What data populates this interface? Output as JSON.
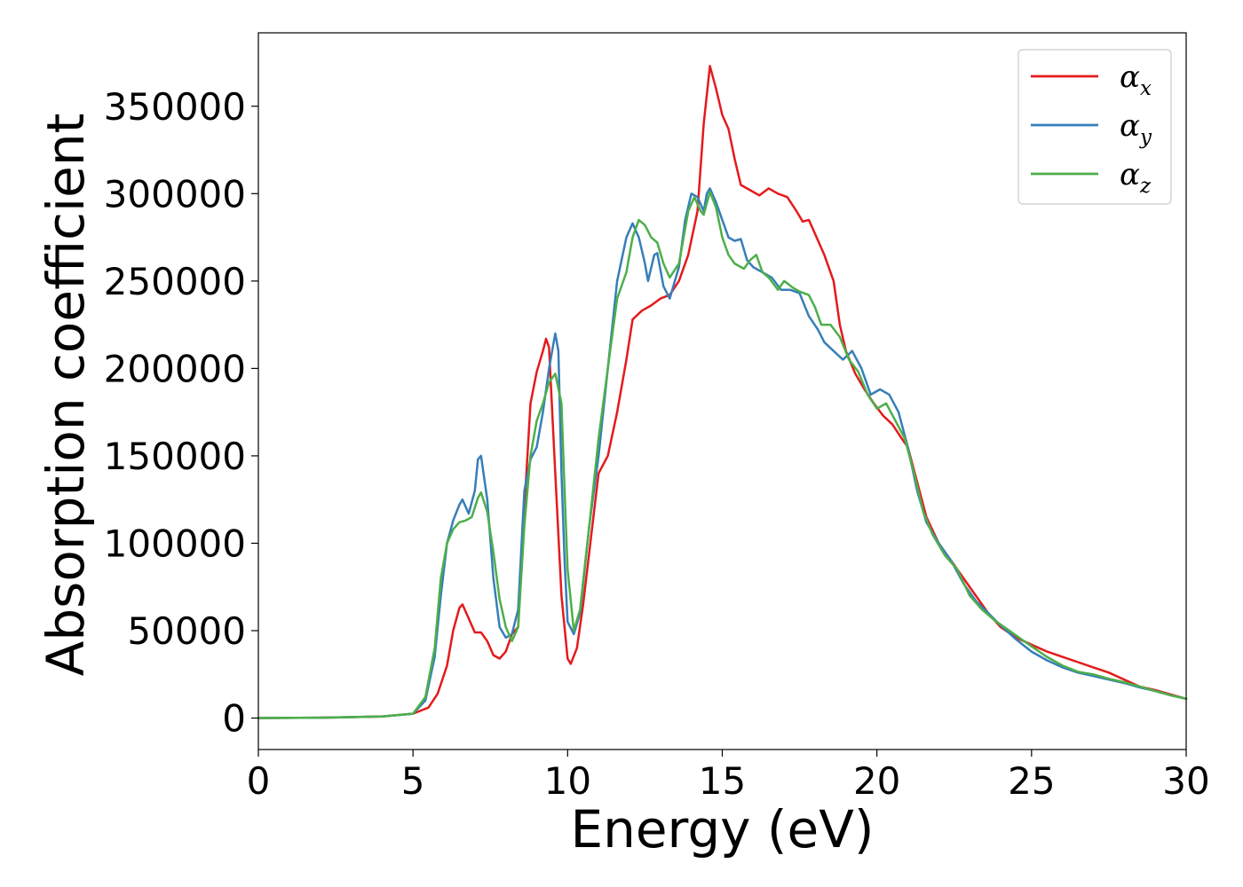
{
  "chart_data": {
    "type": "line",
    "title": "",
    "xlabel": "Energy (eV)",
    "ylabel": "Absorption coefficient",
    "xlim": [
      0,
      30
    ],
    "ylim": [
      -18000,
      392000
    ],
    "xticks": [
      0,
      5,
      10,
      15,
      20,
      25,
      30
    ],
    "xtick_labels": [
      "0",
      "5",
      "10",
      "15",
      "20",
      "25",
      "30"
    ],
    "yticks": [
      0,
      50000,
      100000,
      150000,
      200000,
      250000,
      300000,
      350000
    ],
    "ytick_labels": [
      "0",
      "50000",
      "100000",
      "150000",
      "200000",
      "250000",
      "300000",
      "350000"
    ],
    "grid": false,
    "legend_position": "top-right",
    "series": [
      {
        "name": "α",
        "subscript": "x",
        "color": "#e41a1c",
        "points": [
          [
            0,
            0
          ],
          [
            2,
            200
          ],
          [
            4,
            900
          ],
          [
            5,
            2500
          ],
          [
            5.5,
            6000
          ],
          [
            5.8,
            14000
          ],
          [
            6.1,
            30000
          ],
          [
            6.3,
            50000
          ],
          [
            6.5,
            63000
          ],
          [
            6.6,
            65000
          ],
          [
            6.8,
            57000
          ],
          [
            7.0,
            49000
          ],
          [
            7.2,
            49000
          ],
          [
            7.4,
            44000
          ],
          [
            7.6,
            36000
          ],
          [
            7.8,
            34000
          ],
          [
            8.0,
            38000
          ],
          [
            8.2,
            48000
          ],
          [
            8.4,
            52000
          ],
          [
            8.6,
            120000
          ],
          [
            8.8,
            180000
          ],
          [
            9.0,
            198000
          ],
          [
            9.2,
            210000
          ],
          [
            9.3,
            217000
          ],
          [
            9.4,
            212000
          ],
          [
            9.6,
            140000
          ],
          [
            9.8,
            70000
          ],
          [
            10.0,
            34000
          ],
          [
            10.1,
            31000
          ],
          [
            10.3,
            40000
          ],
          [
            10.5,
            65000
          ],
          [
            10.8,
            110000
          ],
          [
            11.0,
            140000
          ],
          [
            11.3,
            150000
          ],
          [
            11.6,
            175000
          ],
          [
            11.9,
            205000
          ],
          [
            12.1,
            228000
          ],
          [
            12.4,
            233000
          ],
          [
            12.7,
            236000
          ],
          [
            13.0,
            240000
          ],
          [
            13.3,
            242000
          ],
          [
            13.6,
            250000
          ],
          [
            13.9,
            265000
          ],
          [
            14.2,
            290000
          ],
          [
            14.4,
            340000
          ],
          [
            14.6,
            373000
          ],
          [
            14.8,
            360000
          ],
          [
            15.0,
            345000
          ],
          [
            15.2,
            337000
          ],
          [
            15.4,
            320000
          ],
          [
            15.6,
            305000
          ],
          [
            15.9,
            302000
          ],
          [
            16.2,
            299000
          ],
          [
            16.5,
            303000
          ],
          [
            16.8,
            300000
          ],
          [
            17.1,
            298000
          ],
          [
            17.4,
            290000
          ],
          [
            17.6,
            284000
          ],
          [
            17.8,
            285000
          ],
          [
            18.0,
            277000
          ],
          [
            18.3,
            265000
          ],
          [
            18.6,
            250000
          ],
          [
            18.8,
            225000
          ],
          [
            19.0,
            210000
          ],
          [
            19.3,
            197000
          ],
          [
            19.6,
            188000
          ],
          [
            19.9,
            180000
          ],
          [
            20.2,
            173000
          ],
          [
            20.5,
            168000
          ],
          [
            20.8,
            160000
          ],
          [
            21.0,
            155000
          ],
          [
            21.3,
            135000
          ],
          [
            21.6,
            115000
          ],
          [
            22.0,
            100000
          ],
          [
            22.4,
            90000
          ],
          [
            22.8,
            80000
          ],
          [
            23.2,
            70000
          ],
          [
            23.6,
            60000
          ],
          [
            24.0,
            52000
          ],
          [
            24.5,
            46000
          ],
          [
            25.0,
            42000
          ],
          [
            25.5,
            38000
          ],
          [
            26.0,
            35000
          ],
          [
            26.5,
            32000
          ],
          [
            27.0,
            29000
          ],
          [
            27.5,
            26000
          ],
          [
            28.0,
            22000
          ],
          [
            28.5,
            18000
          ],
          [
            29.0,
            16000
          ],
          [
            29.5,
            13500
          ],
          [
            30.0,
            11000
          ]
        ]
      },
      {
        "name": "α",
        "subscript": "y",
        "color": "#377eb8",
        "points": [
          [
            0,
            0
          ],
          [
            2,
            200
          ],
          [
            4,
            900
          ],
          [
            5,
            2500
          ],
          [
            5.4,
            10000
          ],
          [
            5.7,
            35000
          ],
          [
            5.9,
            70000
          ],
          [
            6.1,
            100000
          ],
          [
            6.3,
            113000
          ],
          [
            6.5,
            122000
          ],
          [
            6.6,
            125000
          ],
          [
            6.8,
            117000
          ],
          [
            7.0,
            130000
          ],
          [
            7.1,
            148000
          ],
          [
            7.2,
            150000
          ],
          [
            7.4,
            125000
          ],
          [
            7.6,
            80000
          ],
          [
            7.8,
            52000
          ],
          [
            8.0,
            46000
          ],
          [
            8.2,
            48000
          ],
          [
            8.4,
            62000
          ],
          [
            8.6,
            130000
          ],
          [
            8.8,
            148000
          ],
          [
            9.0,
            155000
          ],
          [
            9.2,
            175000
          ],
          [
            9.4,
            200000
          ],
          [
            9.6,
            220000
          ],
          [
            9.7,
            210000
          ],
          [
            9.8,
            140000
          ],
          [
            9.9,
            90000
          ],
          [
            10.0,
            55000
          ],
          [
            10.2,
            48000
          ],
          [
            10.4,
            60000
          ],
          [
            10.7,
            110000
          ],
          [
            11.0,
            150000
          ],
          [
            11.3,
            200000
          ],
          [
            11.6,
            250000
          ],
          [
            11.9,
            275000
          ],
          [
            12.1,
            283000
          ],
          [
            12.3,
            275000
          ],
          [
            12.5,
            260000
          ],
          [
            12.6,
            250000
          ],
          [
            12.8,
            265000
          ],
          [
            12.9,
            266000
          ],
          [
            13.1,
            247000
          ],
          [
            13.3,
            240000
          ],
          [
            13.6,
            258000
          ],
          [
            13.8,
            285000
          ],
          [
            14.0,
            300000
          ],
          [
            14.2,
            298000
          ],
          [
            14.4,
            290000
          ],
          [
            14.5,
            300000
          ],
          [
            14.6,
            303000
          ],
          [
            14.8,
            295000
          ],
          [
            15.0,
            285000
          ],
          [
            15.2,
            275000
          ],
          [
            15.4,
            273000
          ],
          [
            15.6,
            274000
          ],
          [
            15.8,
            262000
          ],
          [
            16.0,
            258000
          ],
          [
            16.3,
            255000
          ],
          [
            16.6,
            252000
          ],
          [
            16.9,
            245000
          ],
          [
            17.2,
            245000
          ],
          [
            17.5,
            243000
          ],
          [
            17.8,
            230000
          ],
          [
            18.1,
            222000
          ],
          [
            18.3,
            215000
          ],
          [
            18.6,
            210000
          ],
          [
            18.9,
            205000
          ],
          [
            19.2,
            210000
          ],
          [
            19.5,
            200000
          ],
          [
            19.8,
            185000
          ],
          [
            20.1,
            188000
          ],
          [
            20.4,
            185000
          ],
          [
            20.7,
            175000
          ],
          [
            21.0,
            155000
          ],
          [
            21.3,
            130000
          ],
          [
            21.6,
            112000
          ],
          [
            22.0,
            100000
          ],
          [
            22.4,
            90000
          ],
          [
            22.8,
            77000
          ],
          [
            23.2,
            67000
          ],
          [
            23.6,
            60000
          ],
          [
            24.0,
            53000
          ],
          [
            24.5,
            45000
          ],
          [
            25.0,
            38000
          ],
          [
            25.5,
            33000
          ],
          [
            26.0,
            29000
          ],
          [
            26.5,
            26000
          ],
          [
            27.0,
            24000
          ],
          [
            27.5,
            22000
          ],
          [
            28.0,
            20000
          ],
          [
            28.5,
            17500
          ],
          [
            29.0,
            15500
          ],
          [
            29.5,
            13000
          ],
          [
            30.0,
            11000
          ]
        ]
      },
      {
        "name": "α",
        "subscript": "z",
        "color": "#4daf4a",
        "points": [
          [
            0,
            0
          ],
          [
            2,
            200
          ],
          [
            4,
            900
          ],
          [
            5,
            2500
          ],
          [
            5.4,
            12000
          ],
          [
            5.7,
            40000
          ],
          [
            5.9,
            80000
          ],
          [
            6.1,
            100000
          ],
          [
            6.3,
            108000
          ],
          [
            6.5,
            112000
          ],
          [
            6.7,
            113000
          ],
          [
            6.9,
            115000
          ],
          [
            7.1,
            126000
          ],
          [
            7.2,
            129000
          ],
          [
            7.4,
            118000
          ],
          [
            7.6,
            95000
          ],
          [
            7.8,
            68000
          ],
          [
            8.0,
            52000
          ],
          [
            8.2,
            44000
          ],
          [
            8.4,
            52000
          ],
          [
            8.6,
            110000
          ],
          [
            8.8,
            150000
          ],
          [
            9.0,
            170000
          ],
          [
            9.2,
            180000
          ],
          [
            9.4,
            192000
          ],
          [
            9.6,
            197000
          ],
          [
            9.8,
            180000
          ],
          [
            9.9,
            130000
          ],
          [
            10.0,
            85000
          ],
          [
            10.2,
            50000
          ],
          [
            10.4,
            62000
          ],
          [
            10.7,
            110000
          ],
          [
            11.0,
            160000
          ],
          [
            11.3,
            200000
          ],
          [
            11.6,
            240000
          ],
          [
            11.9,
            255000
          ],
          [
            12.1,
            275000
          ],
          [
            12.3,
            285000
          ],
          [
            12.5,
            282000
          ],
          [
            12.7,
            275000
          ],
          [
            12.9,
            272000
          ],
          [
            13.1,
            260000
          ],
          [
            13.3,
            252000
          ],
          [
            13.6,
            260000
          ],
          [
            13.9,
            290000
          ],
          [
            14.1,
            298000
          ],
          [
            14.3,
            290000
          ],
          [
            14.4,
            288000
          ],
          [
            14.6,
            301000
          ],
          [
            14.8,
            292000
          ],
          [
            15.0,
            275000
          ],
          [
            15.2,
            265000
          ],
          [
            15.4,
            260000
          ],
          [
            15.7,
            257000
          ],
          [
            15.9,
            262000
          ],
          [
            16.1,
            265000
          ],
          [
            16.3,
            255000
          ],
          [
            16.5,
            252000
          ],
          [
            16.8,
            245000
          ],
          [
            17.0,
            250000
          ],
          [
            17.3,
            246000
          ],
          [
            17.5,
            244000
          ],
          [
            17.8,
            242000
          ],
          [
            18.0,
            235000
          ],
          [
            18.2,
            225000
          ],
          [
            18.5,
            225000
          ],
          [
            18.8,
            218000
          ],
          [
            19.1,
            205000
          ],
          [
            19.4,
            198000
          ],
          [
            19.7,
            185000
          ],
          [
            20.0,
            177000
          ],
          [
            20.3,
            180000
          ],
          [
            20.6,
            170000
          ],
          [
            20.9,
            160000
          ],
          [
            21.2,
            140000
          ],
          [
            21.5,
            118000
          ],
          [
            21.8,
            105000
          ],
          [
            22.2,
            93000
          ],
          [
            22.6,
            85000
          ],
          [
            23.0,
            70000
          ],
          [
            23.4,
            62000
          ],
          [
            23.8,
            56000
          ],
          [
            24.2,
            51000
          ],
          [
            24.6,
            46000
          ],
          [
            25.0,
            41000
          ],
          [
            25.5,
            35000
          ],
          [
            26.0,
            30000
          ],
          [
            26.5,
            26500
          ],
          [
            27.0,
            25000
          ],
          [
            27.5,
            22500
          ],
          [
            28.0,
            20500
          ],
          [
            28.5,
            18000
          ],
          [
            29.0,
            15500
          ],
          [
            29.5,
            13000
          ],
          [
            30.0,
            11000
          ]
        ]
      }
    ]
  }
}
